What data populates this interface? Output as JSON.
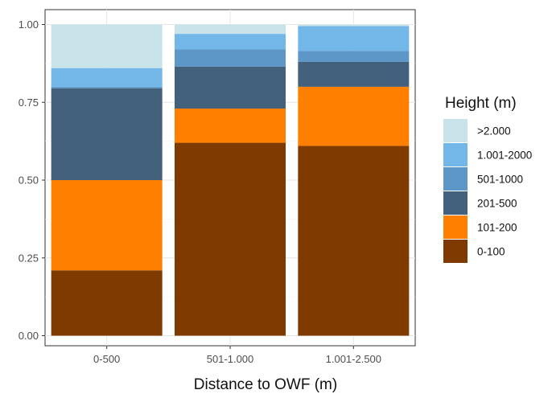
{
  "chart_data": {
    "type": "bar",
    "stacked": true,
    "normalized": true,
    "categories": [
      "0-500",
      "501-1.000",
      "1.001-2.500"
    ],
    "xlabel": "Distance to OWF (m)",
    "ylabel": "",
    "ylim": [
      0,
      1
    ],
    "yticks": [
      0.0,
      0.25,
      0.5,
      0.75,
      1.0
    ],
    "ytick_labels": [
      "0.00",
      "0.25",
      "0.50",
      "0.75",
      "1.00"
    ],
    "grid": true,
    "legend": {
      "title": "Height (m)",
      "position": "right"
    },
    "series": [
      {
        "name": "0-100",
        "color": "#7f3a00",
        "values": [
          0.21,
          0.62,
          0.61
        ]
      },
      {
        "name": "101-200",
        "color": "#ff8000",
        "values": [
          0.29,
          0.11,
          0.19
        ]
      },
      {
        "name": "201-500",
        "color": "#43607d",
        "values": [
          0.295,
          0.135,
          0.08
        ]
      },
      {
        "name": "501-1000",
        "color": "#5d97c7",
        "values": [
          0.005,
          0.055,
          0.035
        ]
      },
      {
        "name": "1.001-2000",
        "color": "#72b7e8",
        "values": [
          0.06,
          0.05,
          0.08
        ]
      },
      {
        "name": ">2.000",
        "color": "#c9e3ea",
        "values": [
          0.14,
          0.03,
          0.005
        ]
      }
    ],
    "legend_order": [
      ">2.000",
      "1.001-2000",
      "501-1000",
      "201-500",
      "101-200",
      "0-100"
    ]
  }
}
